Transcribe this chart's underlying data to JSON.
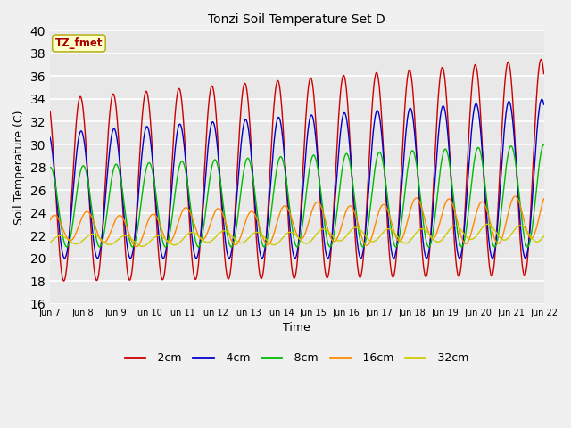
{
  "title": "Tonzi Soil Temperature Set D",
  "xlabel": "Time",
  "ylabel": "Soil Temperature (C)",
  "ylim": [
    16,
    40
  ],
  "yticks": [
    16,
    18,
    20,
    22,
    24,
    26,
    28,
    30,
    32,
    34,
    36,
    38,
    40
  ],
  "legend_label": "TZ_fmet",
  "series_labels": [
    "-2cm",
    "-4cm",
    "-8cm",
    "-16cm",
    "-32cm"
  ],
  "series_colors": [
    "#cc0000",
    "#0000cc",
    "#00bb00",
    "#ff8800",
    "#cccc00"
  ],
  "background_color": "#f0f0f0",
  "plot_bg_color": "#e8e8e8",
  "n_days": 15,
  "xtick_labels": [
    "Jun 7",
    "Jun 8",
    "Jun 9",
    "Jun 10",
    "Jun 11",
    "Jun 12",
    "Jun 13",
    "Jun 14",
    "Jun 15",
    "Jun 16",
    "Jun 17",
    "Jun 18",
    "Jun 19",
    "Jun 20",
    "Jun 21",
    "Jun 22"
  ]
}
